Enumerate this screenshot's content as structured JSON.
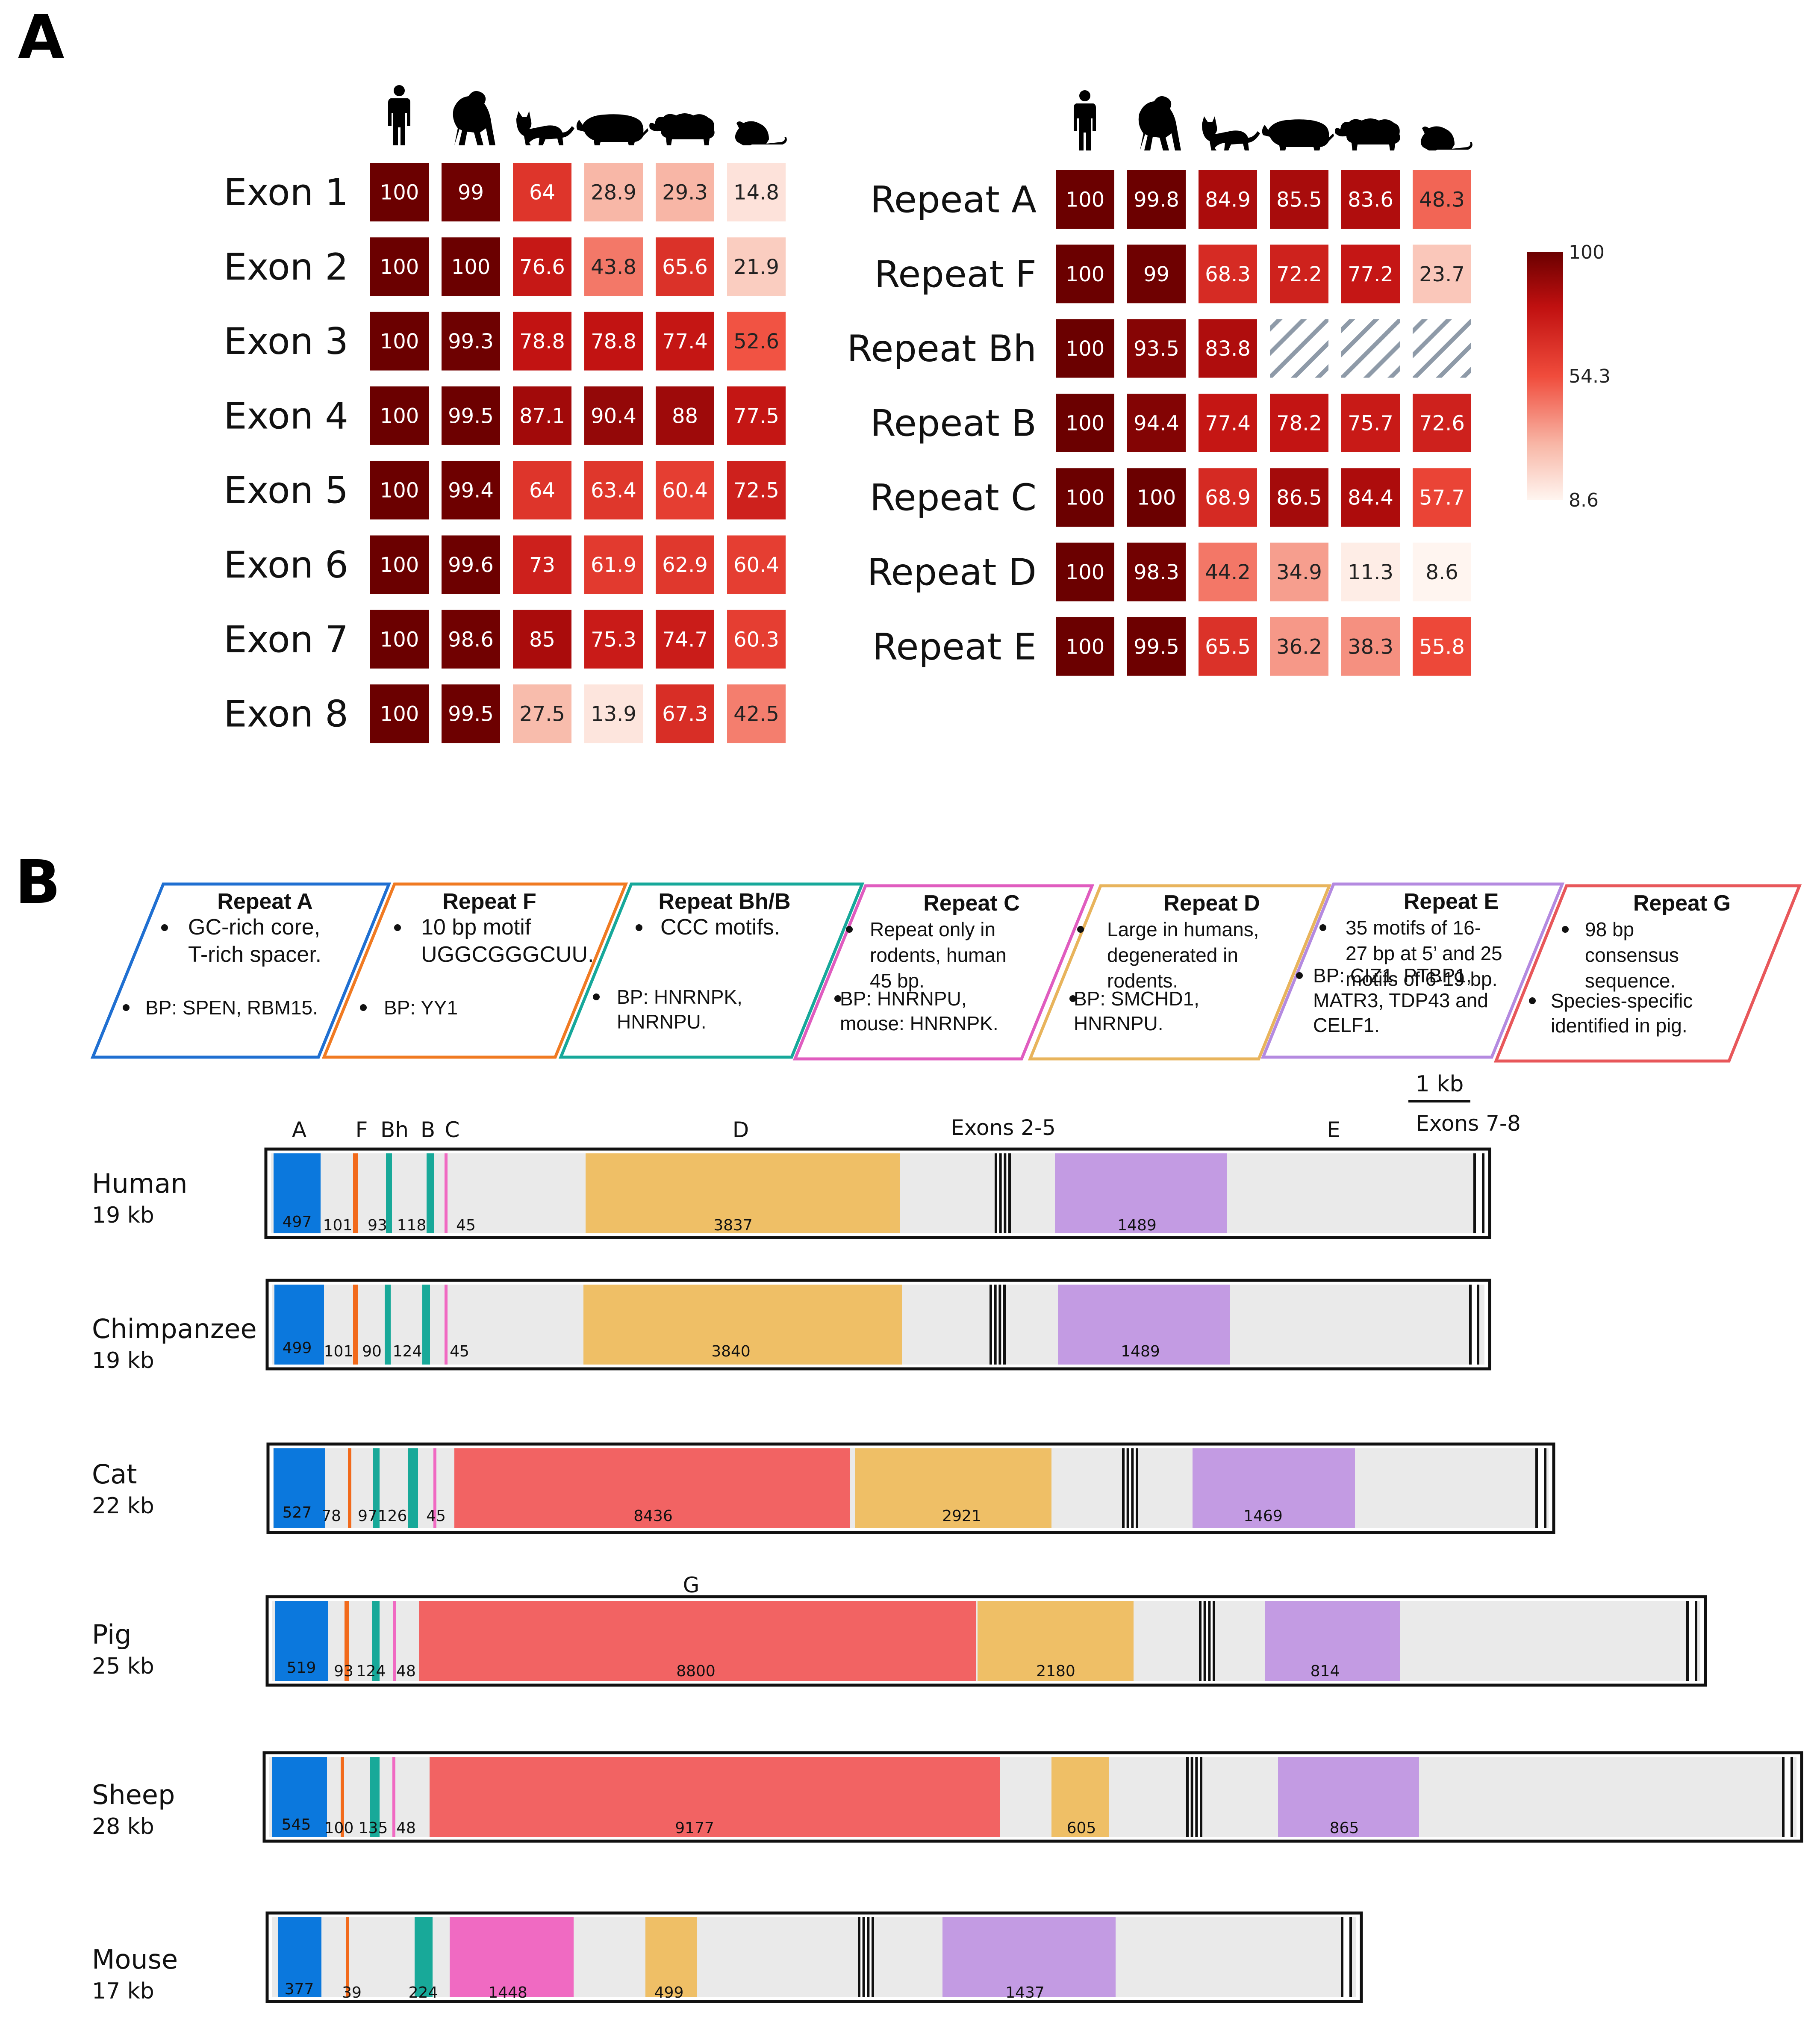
{
  "panel_a": {
    "label": "A",
    "species_icons": [
      "human-icon",
      "chimpanzee-icon",
      "cat-icon",
      "pig-icon",
      "sheep-icon",
      "mouse-icon"
    ],
    "exon_heatmap": {
      "rows": [
        {
          "label": "Exon 1",
          "values": [
            100,
            99,
            64,
            28.9,
            29.3,
            14.8
          ]
        },
        {
          "label": "Exon 2",
          "values": [
            100,
            100,
            76.6,
            43.8,
            65.6,
            21.9
          ]
        },
        {
          "label": "Exon 3",
          "values": [
            100,
            99.3,
            78.8,
            78.8,
            77.4,
            52.6
          ]
        },
        {
          "label": "Exon 4",
          "values": [
            100,
            99.5,
            87.1,
            90.4,
            88,
            77.5
          ]
        },
        {
          "label": "Exon 5",
          "values": [
            100,
            99.4,
            64,
            63.4,
            60.4,
            72.5
          ]
        },
        {
          "label": "Exon 6",
          "values": [
            100,
            99.6,
            73,
            61.9,
            62.9,
            60.4
          ]
        },
        {
          "label": "Exon 7",
          "values": [
            100,
            98.6,
            85,
            75.3,
            74.7,
            60.3
          ]
        },
        {
          "label": "Exon 8",
          "values": [
            100,
            99.5,
            27.5,
            13.9,
            67.3,
            42.5
          ]
        }
      ]
    },
    "repeat_heatmap": {
      "rows": [
        {
          "label": "Repeat A",
          "values": [
            100,
            99.8,
            84.9,
            85.5,
            83.6,
            48.3
          ]
        },
        {
          "label": "Repeat F",
          "values": [
            100,
            99,
            68.3,
            72.2,
            77.2,
            23.7
          ]
        },
        {
          "label": "Repeat Bh",
          "values": [
            100,
            93.5,
            83.8,
            null,
            null,
            null
          ]
        },
        {
          "label": "Repeat B",
          "values": [
            100,
            94.4,
            77.4,
            78.2,
            75.7,
            72.6
          ]
        },
        {
          "label": "Repeat C",
          "values": [
            100,
            100,
            68.9,
            86.5,
            84.4,
            57.7
          ]
        },
        {
          "label": "Repeat D",
          "values": [
            100,
            98.3,
            44.2,
            34.9,
            11.3,
            8.6
          ]
        },
        {
          "label": "Repeat E",
          "values": [
            100,
            99.5,
            65.5,
            36.2,
            38.3,
            55.8
          ]
        }
      ]
    },
    "colorbar": {
      "max_label": "100",
      "mid_label": "54.3",
      "min_label": "8.6",
      "max": 100,
      "mid": 54.3,
      "min": 8.6
    }
  },
  "panel_b": {
    "label": "B",
    "repeat_boxes": [
      {
        "title": "Repeat A",
        "color": "#1f6fd1",
        "desc": [
          "GC-rich core,",
          "T-rich spacer."
        ],
        "bp": [
          "BP: SPEN, RBM15."
        ]
      },
      {
        "title": "Repeat F",
        "color": "#f07a22",
        "desc": [
          "10 bp motif",
          "UGGCGGGCUU."
        ],
        "bp": [
          "BP: YY1"
        ]
      },
      {
        "title": "Repeat Bh/B",
        "color": "#16a89a",
        "desc": [
          "CCC motifs."
        ],
        "bp": [
          "BP: HNRNPK,",
          "HNRNPU."
        ]
      },
      {
        "title": "Repeat C",
        "color": "#e05cbf",
        "desc": [
          "Repeat only in",
          "rodents, human",
          "45 bp."
        ],
        "bp": [
          "BP: HNRNPU,",
          "mouse: HNRNPK."
        ]
      },
      {
        "title": "Repeat D",
        "color": "#e8b45c",
        "desc": [
          "Large in humans,",
          "degenerated in",
          "rodents."
        ],
        "bp": [
          "BP: SMCHD1,",
          "HNRNPU."
        ]
      },
      {
        "title": "Repeat E",
        "color": "#b48ae0",
        "desc": [
          "35 motifs of 16-",
          "27 bp at 5’ and 25",
          "motifs of 6-19 bp."
        ],
        "bp": [
          "BP: CIZ1, PTBP1,",
          "MATR3, TDP43 and",
          "CELF1."
        ]
      },
      {
        "title": "Repeat G",
        "color": "#e8575a",
        "desc": [
          "98 bp",
          "consensus",
          "sequence."
        ],
        "bp": [
          "Species-specific",
          "identified in pig."
        ]
      }
    ],
    "scale_label": "1 kb",
    "top_labels": {
      "A": "A",
      "F": "F",
      "Bh": "Bh",
      "B": "B",
      "C": "C",
      "D": "D",
      "exons25": "Exons 2-5",
      "E": "E",
      "exons78": "Exons 7-8",
      "G": "G"
    },
    "colors": {
      "A": "#0b78dd",
      "F": "#f26a1b",
      "Bh": "#18a999",
      "B": "#18a999",
      "C": "#f06ac2",
      "D": "#efbf66",
      "E": "#c39be3",
      "G": "#f26363",
      "track": "#eaeaea"
    },
    "tracks": [
      {
        "name": "Human",
        "size": "19 kb",
        "labels": {
          "A": "497",
          "F": "101",
          "Bh": "93",
          "B": "118",
          "C": "45",
          "D": "3837",
          "E": "1489"
        }
      },
      {
        "name": "Chimpanzee",
        "size": "19 kb",
        "labels": {
          "A": "499",
          "F": "101",
          "Bh": "90",
          "B": "124",
          "C": "45",
          "D": "3840",
          "E": "1489"
        }
      },
      {
        "name": "Cat",
        "size": "22 kb",
        "labels": {
          "A": "527",
          "F": "78",
          "Bh": "97",
          "B": "126",
          "C": "45",
          "G": "8436",
          "D": "2921",
          "E": "1469"
        }
      },
      {
        "name": "Pig",
        "size": "25 kb",
        "labels": {
          "A": "519",
          "F": "93",
          "B": "124",
          "C": "48",
          "G": "8800",
          "D": "2180",
          "E": "814"
        }
      },
      {
        "name": "Sheep",
        "size": "28 kb",
        "labels": {
          "A": "545",
          "F": "100",
          "B": "135",
          "C": "48",
          "G": "9177",
          "D": "605",
          "E": "865"
        }
      },
      {
        "name": "Mouse",
        "size": "17 kb",
        "labels": {
          "A": "377",
          "F": "39",
          "B": "224",
          "C": "1448",
          "D": "499",
          "E": "1437"
        }
      }
    ]
  }
}
